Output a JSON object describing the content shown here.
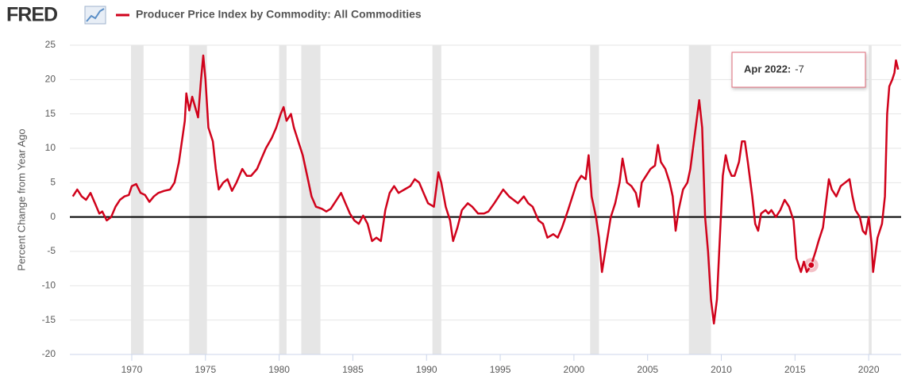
{
  "brand": "FRED",
  "chart_data": {
    "type": "line",
    "y_label": "Percent Change from Year Ago",
    "xlim": [
      1965.8,
      2022.2
    ],
    "xticks": [
      1970,
      1975,
      1980,
      1985,
      1990,
      1995,
      2000,
      2005,
      2010,
      2015,
      2020
    ],
    "ylim": [
      -20,
      25
    ],
    "yticks": [
      -20,
      -15,
      -10,
      -5,
      0,
      5,
      10,
      15,
      20,
      25
    ],
    "grid": true,
    "recession_color": "#e6e6e6",
    "recessions": [
      [
        1969.95,
        1970.8
      ],
      [
        1973.9,
        1975.1
      ],
      [
        1980.0,
        1980.5
      ],
      [
        1981.5,
        1982.8
      ],
      [
        1990.4,
        1991.0
      ],
      [
        2001.1,
        2001.7
      ],
      [
        2007.8,
        2009.3
      ],
      [
        2020.0,
        2020.2
      ]
    ],
    "tooltip": {
      "label": "Apr 2022:",
      "point": 180
    },
    "series": [
      {
        "name": "Producer Price Index by Commodity: All Commodities",
        "color": "#d0021b",
        "x": [
          1966.0,
          1966.3,
          1966.6,
          1966.9,
          1967.2,
          1967.5,
          1967.8,
          1968.0,
          1968.3,
          1968.6,
          1968.9,
          1969.2,
          1969.5,
          1969.8,
          1970.0,
          1970.3,
          1970.6,
          1970.9,
          1971.2,
          1971.5,
          1971.8,
          1972.2,
          1972.6,
          1972.9,
          1973.2,
          1973.4,
          1973.6,
          1973.7,
          1973.9,
          1974.1,
          1974.3,
          1974.5,
          1974.7,
          1974.85,
          1975.0,
          1975.2,
          1975.5,
          1975.7,
          1975.9,
          1976.2,
          1976.5,
          1976.8,
          1977.1,
          1977.5,
          1977.8,
          1978.1,
          1978.5,
          1978.8,
          1979.1,
          1979.5,
          1979.8,
          1980.1,
          1980.3,
          1980.5,
          1980.8,
          1981.0,
          1981.3,
          1981.6,
          1981.9,
          1982.2,
          1982.5,
          1982.9,
          1983.2,
          1983.5,
          1983.9,
          1984.2,
          1984.5,
          1984.8,
          1985.1,
          1985.4,
          1985.7,
          1986.0,
          1986.3,
          1986.6,
          1986.9,
          1987.2,
          1987.5,
          1987.8,
          1988.1,
          1988.5,
          1988.9,
          1989.2,
          1989.5,
          1989.8,
          1990.1,
          1990.5,
          1990.8,
          1991.0,
          1991.3,
          1991.6,
          1991.8,
          1992.1,
          1992.4,
          1992.8,
          1993.1,
          1993.5,
          1993.9,
          1994.2,
          1994.6,
          1994.9,
          1995.2,
          1995.6,
          1995.9,
          1996.2,
          1996.6,
          1996.9,
          1997.2,
          1997.6,
          1997.9,
          1998.2,
          1998.6,
          1998.9,
          1999.2,
          1999.6,
          1999.9,
          2000.2,
          2000.5,
          2000.8,
          2001.0,
          2001.2,
          2001.5,
          2001.7,
          2001.9,
          2002.2,
          2002.5,
          2002.8,
          2003.1,
          2003.3,
          2003.6,
          2003.9,
          2004.2,
          2004.4,
          2004.6,
          2004.9,
          2005.2,
          2005.5,
          2005.7,
          2005.9,
          2006.2,
          2006.5,
          2006.7,
          2006.9,
          2007.1,
          2007.4,
          2007.7,
          2007.9,
          2008.2,
          2008.5,
          2008.7,
          2008.9,
          2009.1,
          2009.3,
          2009.5,
          2009.7,
          2009.9,
          2010.1,
          2010.3,
          2010.5,
          2010.7,
          2010.9,
          2011.2,
          2011.4,
          2011.6,
          2011.8,
          2012.1,
          2012.3,
          2012.5,
          2012.7,
          2013.0,
          2013.2,
          2013.4,
          2013.7,
          2014.0,
          2014.3,
          2014.6,
          2014.9,
          2015.1,
          2015.4,
          2015.6,
          2015.8,
          2016.1,
          2016.4,
          2016.6,
          2016.9,
          2017.1,
          2017.3,
          2017.5,
          2017.8,
          2018.1,
          2018.4,
          2018.7,
          2018.9,
          2019.1,
          2019.4,
          2019.6,
          2019.8,
          2020.0,
          2020.2,
          2020.3,
          2020.6,
          2020.9,
          2021.1,
          2021.25,
          2021.4,
          2021.6,
          2021.75,
          2021.85,
          2022.0
        ],
        "values": [
          3,
          4,
          3,
          2.5,
          3.5,
          2,
          0.5,
          0.8,
          -0.5,
          0,
          1.5,
          2.5,
          3,
          3.2,
          4.5,
          4.8,
          3.5,
          3.2,
          2.2,
          3,
          3.5,
          3.8,
          4,
          5,
          8,
          11,
          14,
          18,
          15.5,
          17.5,
          16,
          14.5,
          20,
          23.5,
          20,
          13,
          11,
          7,
          4,
          5,
          5.5,
          3.8,
          5,
          7,
          6,
          6,
          7,
          8.5,
          10,
          11.5,
          13,
          15,
          16,
          14,
          15,
          13,
          11,
          9,
          6,
          3,
          1.5,
          1.2,
          0.8,
          1.2,
          2.5,
          3.5,
          2,
          0.5,
          -0.5,
          -1,
          0.2,
          -1,
          -3.5,
          -3,
          -3.5,
          1,
          3.5,
          4.5,
          3.5,
          4,
          4.5,
          5.5,
          5,
          3.5,
          2,
          1.5,
          6.5,
          5,
          1.5,
          -0.5,
          -3.5,
          -1.5,
          1,
          2,
          1.5,
          0.5,
          0.5,
          0.8,
          2,
          3,
          4,
          3,
          2.5,
          2,
          3,
          2,
          1.5,
          -0.5,
          -1,
          -3,
          -2.5,
          -3,
          -1.5,
          1,
          3,
          5,
          6,
          5.5,
          9,
          3,
          0,
          -3,
          -8,
          -4,
          0,
          2,
          5,
          8.5,
          5,
          4.5,
          3.5,
          1.5,
          5,
          6,
          7,
          7.5,
          10.5,
          8,
          7,
          5,
          3,
          -2,
          1,
          4,
          5,
          7,
          12,
          17,
          13,
          0,
          -5,
          -12,
          -15.5,
          -12,
          -3,
          6,
          9,
          7,
          6,
          6,
          8,
          11,
          11,
          8,
          3,
          -1,
          -2,
          0.5,
          1,
          0.5,
          1,
          0,
          1,
          2.5,
          1.5,
          -0.5,
          -6,
          -8,
          -6.5,
          -8,
          -7,
          -5,
          -3.5,
          -1.5,
          2,
          5.5,
          4,
          3,
          4.5,
          5,
          5.5,
          3,
          1,
          0,
          -2,
          -2.5,
          0,
          -4,
          -8,
          -3,
          -1,
          3,
          15,
          19,
          20,
          21,
          22.8,
          21.46214
        ]
      }
    ]
  }
}
